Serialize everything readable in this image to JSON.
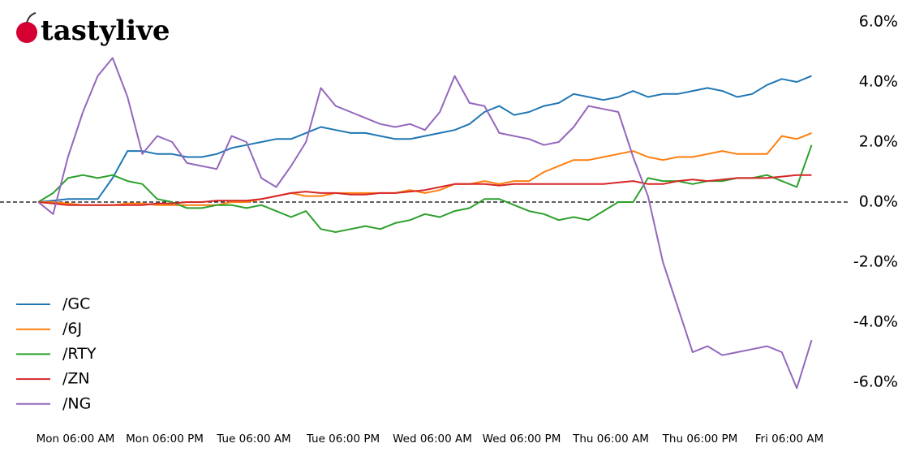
{
  "chart_data": {
    "type": "line",
    "logo": "tastylive",
    "x": [
      1,
      3,
      5,
      7,
      9,
      11,
      13,
      15,
      17,
      19,
      21,
      23,
      25,
      27,
      29,
      31,
      33,
      35,
      37,
      39,
      41,
      43,
      45,
      47,
      49,
      51,
      53,
      55,
      57,
      59,
      61,
      63,
      65,
      67,
      69,
      71,
      73,
      75,
      77,
      79,
      81,
      83,
      85,
      87,
      89,
      91,
      93,
      95,
      97,
      99,
      101,
      103,
      105
    ],
    "xlim": [
      -4,
      110
    ],
    "xticks": [
      {
        "value": 6,
        "label": "Mon 06:00 AM"
      },
      {
        "value": 18,
        "label": "Mon 06:00 PM"
      },
      {
        "value": 30,
        "label": "Tue 06:00 AM"
      },
      {
        "value": 42,
        "label": "Tue 06:00 PM"
      },
      {
        "value": 54,
        "label": "Wed 06:00 AM"
      },
      {
        "value": 66,
        "label": "Wed 06:00 PM"
      },
      {
        "value": 78,
        "label": "Thu 06:00 AM"
      },
      {
        "value": 90,
        "label": "Thu 06:00 PM"
      },
      {
        "value": 102,
        "label": "Fri 06:00 AM"
      }
    ],
    "ylim": [
      -7,
      6.2
    ],
    "yticks": [
      {
        "value": -6,
        "label": "-6.0%"
      },
      {
        "value": -4,
        "label": "-4.0%"
      },
      {
        "value": -2,
        "label": "-2.0%"
      },
      {
        "value": 0,
        "label": "0.0%"
      },
      {
        "value": 2,
        "label": "2.0%"
      },
      {
        "value": 4,
        "label": "4.0%"
      },
      {
        "value": 6,
        "label": "6.0%"
      }
    ],
    "reference_line": 0,
    "legend": "lower left",
    "series": [
      {
        "name": "/GC",
        "color": "#1f77b4",
        "values": [
          0,
          0.05,
          0.1,
          0.1,
          0.1,
          0.8,
          1.7,
          1.7,
          1.6,
          1.6,
          1.5,
          1.5,
          1.6,
          1.8,
          1.9,
          2.0,
          2.1,
          2.1,
          2.3,
          2.5,
          2.4,
          2.3,
          2.3,
          2.2,
          2.1,
          2.1,
          2.2,
          2.3,
          2.4,
          2.6,
          3.0,
          3.2,
          2.9,
          3.0,
          3.2,
          3.3,
          3.6,
          3.5,
          3.4,
          3.5,
          3.7,
          3.5,
          3.6,
          3.6,
          3.7,
          3.8,
          3.7,
          3.5,
          3.6,
          3.9,
          4.1,
          4.0,
          4.2
        ]
      },
      {
        "name": "/6J",
        "color": "#ff7f0e",
        "values": [
          0,
          0,
          -0.05,
          -0.1,
          -0.1,
          -0.1,
          -0.05,
          -0.05,
          -0.1,
          -0.1,
          -0.1,
          -0.1,
          -0.1,
          0,
          0,
          0.1,
          0.2,
          0.3,
          0.2,
          0.2,
          0.3,
          0.3,
          0.3,
          0.3,
          0.3,
          0.4,
          0.3,
          0.4,
          0.6,
          0.6,
          0.7,
          0.6,
          0.7,
          0.7,
          1.0,
          1.2,
          1.4,
          1.4,
          1.5,
          1.6,
          1.7,
          1.5,
          1.4,
          1.5,
          1.5,
          1.6,
          1.7,
          1.6,
          1.6,
          1.6,
          2.2,
          2.1,
          2.3
        ]
      },
      {
        "name": "/RTY",
        "color": "#2ca02c",
        "values": [
          0,
          0.3,
          0.8,
          0.9,
          0.8,
          0.9,
          0.7,
          0.6,
          0.1,
          0,
          -0.2,
          -0.2,
          -0.1,
          -0.1,
          -0.2,
          -0.1,
          -0.3,
          -0.5,
          -0.3,
          -0.9,
          -1.0,
          -0.9,
          -0.8,
          -0.9,
          -0.7,
          -0.6,
          -0.4,
          -0.5,
          -0.3,
          -0.2,
          0.1,
          0.1,
          -0.1,
          -0.3,
          -0.4,
          -0.6,
          -0.5,
          -0.6,
          -0.3,
          0,
          0,
          0.8,
          0.7,
          0.7,
          0.6,
          0.7,
          0.7,
          0.8,
          0.8,
          0.9,
          0.7,
          0.5,
          1.9
        ]
      },
      {
        "name": "/ZN",
        "color": "#d62728",
        "values": [
          0,
          -0.05,
          -0.1,
          -0.1,
          -0.1,
          -0.1,
          -0.1,
          -0.1,
          -0.05,
          -0.05,
          0,
          0,
          0.05,
          0.05,
          0.05,
          0.1,
          0.2,
          0.3,
          0.35,
          0.3,
          0.3,
          0.25,
          0.25,
          0.3,
          0.3,
          0.35,
          0.4,
          0.5,
          0.6,
          0.6,
          0.6,
          0.55,
          0.6,
          0.6,
          0.6,
          0.6,
          0.6,
          0.6,
          0.6,
          0.65,
          0.7,
          0.6,
          0.6,
          0.7,
          0.75,
          0.7,
          0.75,
          0.8,
          0.8,
          0.8,
          0.85,
          0.9,
          0.9
        ]
      },
      {
        "name": "/NG",
        "color": "#9467bd",
        "values": [
          0,
          -0.4,
          1.5,
          3.0,
          4.2,
          4.8,
          3.5,
          1.6,
          2.2,
          2.0,
          1.3,
          1.2,
          1.1,
          2.2,
          2.0,
          0.8,
          0.5,
          1.2,
          2.0,
          3.8,
          3.2,
          3.0,
          2.8,
          2.6,
          2.5,
          2.6,
          2.4,
          3.0,
          4.2,
          3.3,
          3.2,
          2.3,
          2.2,
          2.1,
          1.9,
          2.0,
          2.5,
          3.2,
          3.1,
          3.0,
          1.5,
          0.2,
          -2.0,
          -3.5,
          -5.0,
          -4.8,
          -5.1,
          -5.0,
          -4.9,
          -4.8,
          -5.0,
          -6.2,
          -4.6
        ]
      }
    ]
  }
}
